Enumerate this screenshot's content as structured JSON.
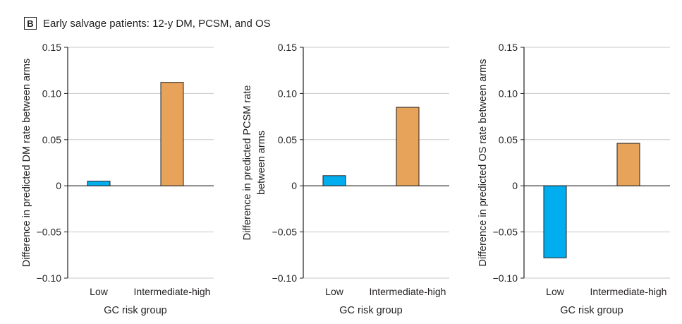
{
  "figure": {
    "panel_letter": "B",
    "panel_title": "Early salvage patients: 12-y DM, PCSM, and OS"
  },
  "colors": {
    "low": "#00aeef",
    "intermediate_high": "#e8a35a",
    "gridline": "#c8c8c8",
    "axis": "#231f20"
  },
  "chart_data": [
    {
      "type": "bar",
      "categories": [
        "Low",
        "Intermediate-high"
      ],
      "values": [
        0.005,
        0.112
      ],
      "xlabel": "GC risk group",
      "ylabel": [
        "Difference in predicted DM rate between arms"
      ],
      "ylim": [
        -0.1,
        0.15
      ],
      "yticks": [
        0.15,
        0.1,
        0.05,
        0,
        -0.05,
        -0.1
      ],
      "ytick_labels": [
        "0.15",
        "0.10",
        "0.05",
        "0",
        "−0.05",
        "−0.10"
      ],
      "grid": true
    },
    {
      "type": "bar",
      "categories": [
        "Low",
        "Intermediate-high"
      ],
      "values": [
        0.011,
        0.085
      ],
      "xlabel": "GC risk group",
      "ylabel": [
        "Difference in predicted PCSM rate",
        "between arms"
      ],
      "ylim": [
        -0.1,
        0.15
      ],
      "yticks": [
        0.15,
        0.1,
        0.05,
        0,
        -0.05,
        -0.1
      ],
      "ytick_labels": [
        "0.15",
        "0.10",
        "0.05",
        "0",
        "−0.05",
        "−0.10"
      ],
      "grid": true
    },
    {
      "type": "bar",
      "categories": [
        "Low",
        "Intermediate-high"
      ],
      "values": [
        -0.078,
        0.046
      ],
      "xlabel": "GC risk group",
      "ylabel": [
        "Difference in predicted OS rate between arms"
      ],
      "ylim": [
        -0.1,
        0.15
      ],
      "yticks": [
        0.15,
        0.1,
        0.05,
        0,
        -0.05,
        -0.1
      ],
      "ytick_labels": [
        "0.15",
        "0.10",
        "0.05",
        "0",
        "−0.05",
        "−0.10"
      ],
      "grid": true
    }
  ]
}
